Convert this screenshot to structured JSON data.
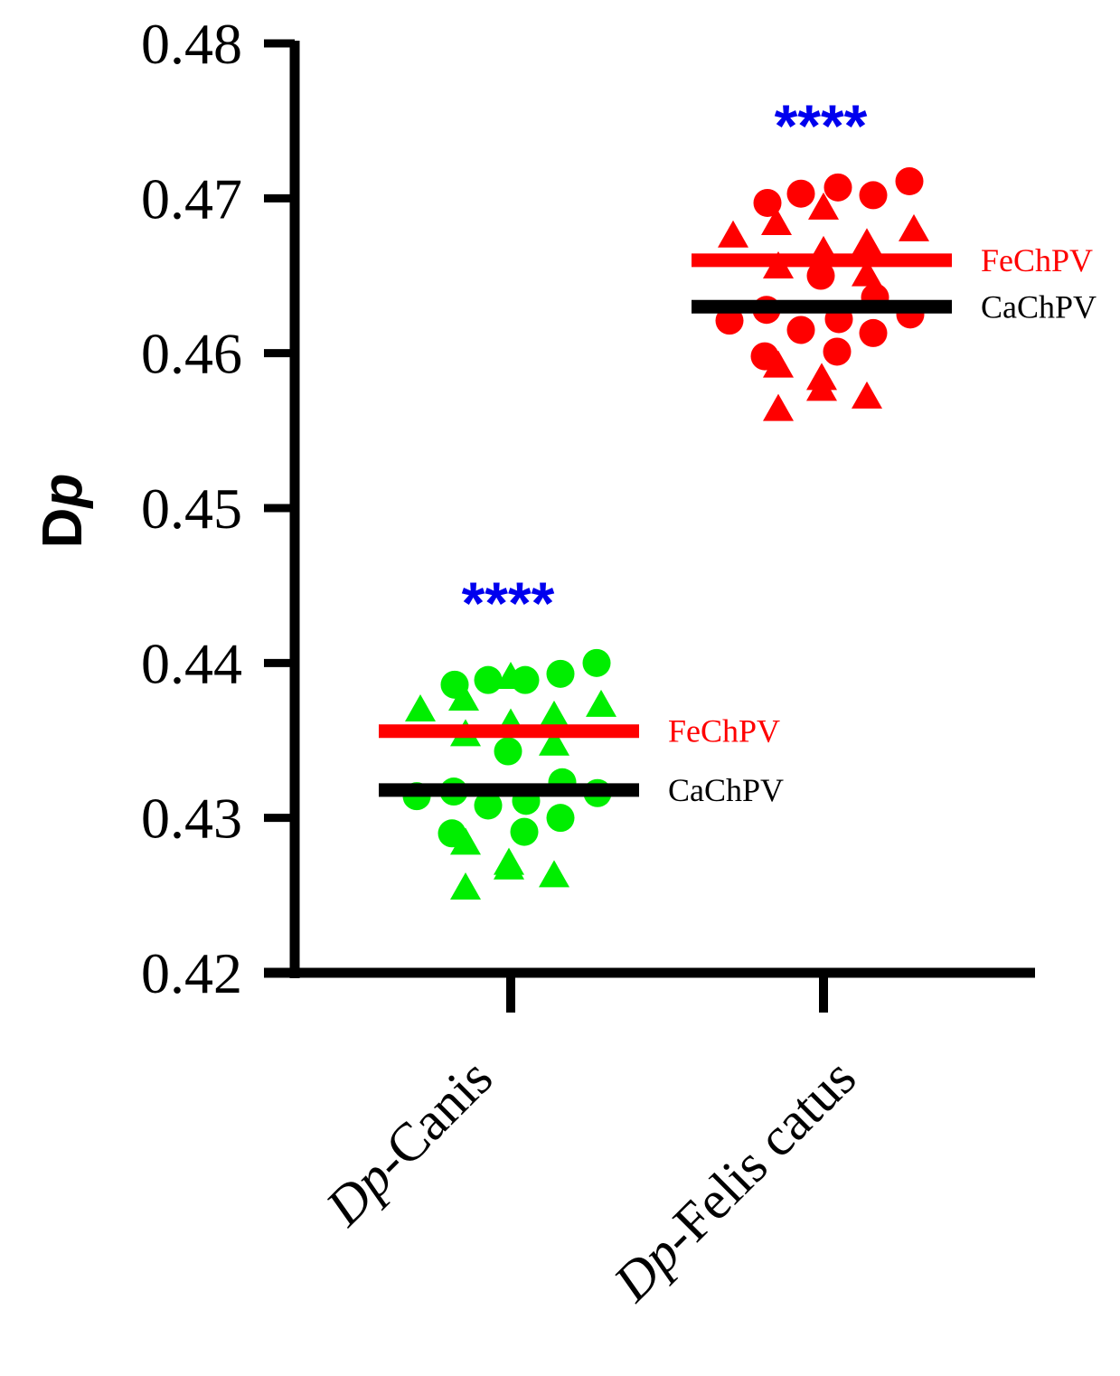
{
  "chart_data": {
    "type": "scatter",
    "ylabel_main": "D",
    "ylabel_italic": "p",
    "ylim": [
      0.42,
      0.48
    ],
    "yticks": [
      "0.42",
      "0.43",
      "0.44",
      "0.45",
      "0.46",
      "0.47",
      "0.48"
    ],
    "grid": false,
    "categories": [
      {
        "italic": "Dp",
        "rest": "-Canis"
      },
      {
        "italic": "Dp",
        "rest": "-Felis catus"
      }
    ],
    "groups": [
      {
        "category": 0,
        "color": "#00ee00",
        "significance": "****",
        "circles": [
          0.4386,
          0.4389,
          0.4389,
          0.4393,
          0.44,
          0.4343,
          0.4323,
          0.4317,
          0.4311,
          0.4314,
          0.4316,
          0.4308,
          0.43,
          0.429,
          0.4291
        ],
        "triangles": [
          0.4371,
          0.4378,
          0.4392,
          0.4362,
          0.4367,
          0.4374,
          0.4355,
          0.4349,
          0.4285,
          0.4272,
          0.4269,
          0.4264,
          0.4256
        ],
        "lines": [
          {
            "label": "FeChPV",
            "value": 0.4356,
            "color": "#ff0000"
          },
          {
            "label": "CaChPV",
            "value": 0.4318,
            "color": "#000000"
          }
        ]
      },
      {
        "category": 1,
        "color": "#ff0000",
        "significance": "****",
        "circles": [
          0.4697,
          0.4703,
          0.4707,
          0.4702,
          0.4711,
          0.465,
          0.4636,
          0.4628,
          0.4622,
          0.4621,
          0.4625,
          0.4615,
          0.4613,
          0.4598,
          0.4601
        ],
        "triangles": [
          0.4677,
          0.4685,
          0.4695,
          0.4667,
          0.4672,
          0.4681,
          0.4657,
          0.4652,
          0.4593,
          0.4585,
          0.4578,
          0.4573,
          0.4565
        ],
        "lines": [
          {
            "label": "FeChPV",
            "value": 0.466,
            "color": "#ff0000"
          },
          {
            "label": "CaChPV",
            "value": 0.463,
            "color": "#000000"
          }
        ]
      }
    ],
    "significance_color": "#0000ee"
  }
}
